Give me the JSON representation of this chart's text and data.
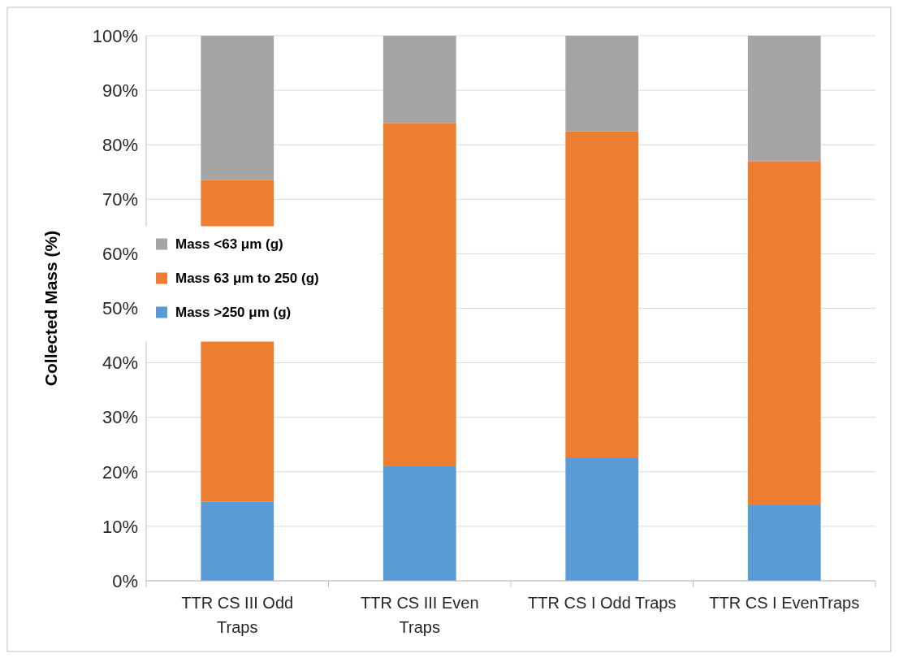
{
  "chart_data": {
    "type": "bar",
    "stacked": true,
    "ylabel": "Collected Mass (%)",
    "categories": [
      "TTR CS III  Odd Traps",
      "TTR CS III  Even Traps",
      "TTR CS I  Odd Traps",
      "TTR CS I  EvenTraps"
    ],
    "series": [
      {
        "name": "Mass >250 μm (g)",
        "color": "#5b9bd5",
        "values": [
          14.5,
          21,
          22.5,
          14
        ]
      },
      {
        "name": "Mass 63 μm to 250 (g)",
        "color": "#ed7d31",
        "values": [
          59,
          63,
          60,
          63
        ]
      },
      {
        "name": "Mass <63 μm (g)",
        "color": "#a5a5a5",
        "values": [
          26.5,
          16,
          17.5,
          23
        ]
      }
    ],
    "ylim": [
      0,
      100
    ],
    "yticks": [
      {
        "value": 0,
        "label": "0%"
      },
      {
        "value": 10,
        "label": "10%"
      },
      {
        "value": 20,
        "label": "20%"
      },
      {
        "value": 30,
        "label": "30%"
      },
      {
        "value": 40,
        "label": "40%"
      },
      {
        "value": 50,
        "label": "50%"
      },
      {
        "value": 60,
        "label": "60%"
      },
      {
        "value": 70,
        "label": "70%"
      },
      {
        "value": 80,
        "label": "80%"
      },
      {
        "value": 90,
        "label": "90%"
      },
      {
        "value": 100,
        "label": "100%"
      }
    ],
    "grid": "y",
    "legend": "left"
  }
}
